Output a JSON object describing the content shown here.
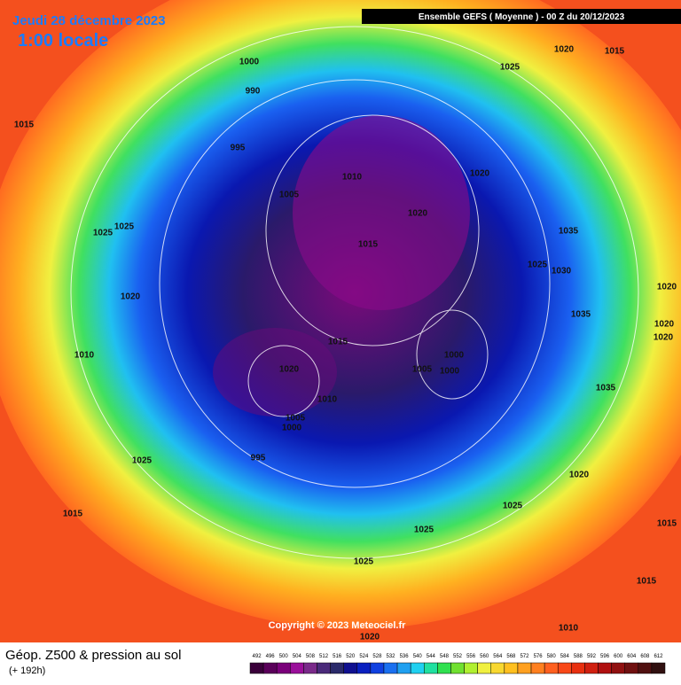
{
  "header": {
    "date": "Jeudi 28 décembre 2023",
    "time": "1:00 locale",
    "model": "Ensemble GEFS  ( Moyenne )  -  00 Z du 20/12/2023"
  },
  "footer": {
    "title": "Géop. Z500 & pression au sol",
    "lead": "(+ 192h)",
    "copyright": "Copyright © 2023 Meteociel.fr"
  },
  "isobar_labels": [
    1000,
    990,
    995,
    1005,
    1010,
    1020,
    1015,
    1020,
    1025,
    1020,
    1015,
    1015,
    1025,
    1025,
    1020,
    1010,
    1035,
    1025,
    1030,
    1035,
    1020,
    1020,
    1020,
    1015,
    1020,
    1010,
    1005,
    1000,
    1000,
    1005,
    1000,
    995,
    1035,
    1025,
    1020,
    1015,
    1025,
    1025,
    1025,
    1015,
    1015,
    1010,
    1020
  ],
  "colorbar": {
    "labels": [
      492,
      496,
      500,
      504,
      508,
      512,
      516,
      520,
      524,
      528,
      532,
      536,
      540,
      544,
      548,
      552,
      556,
      560,
      564,
      568,
      572,
      576,
      580,
      584,
      588,
      592,
      596,
      600,
      604,
      608,
      612
    ]
  }
}
